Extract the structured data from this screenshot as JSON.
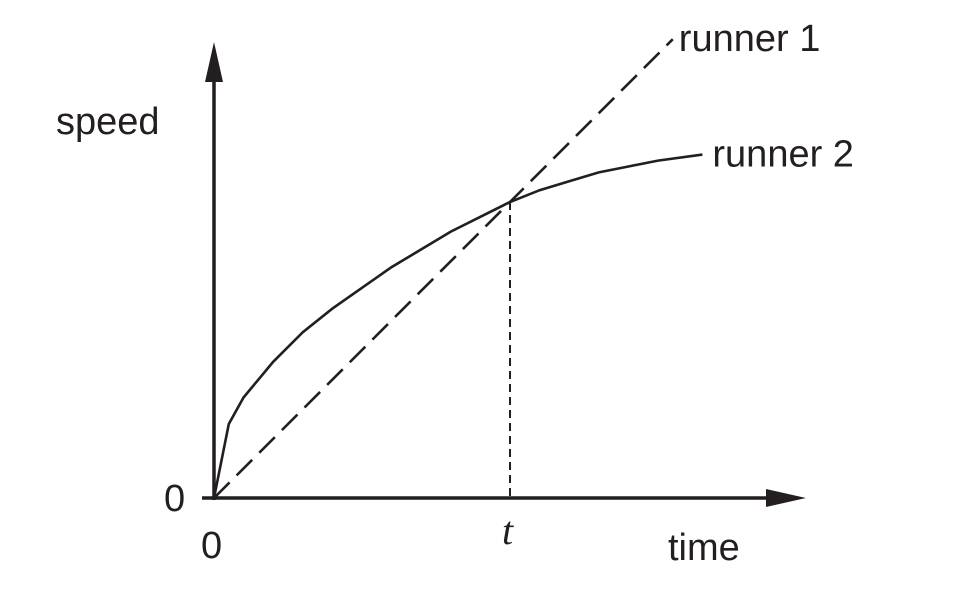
{
  "chart_data": {
    "type": "line",
    "title": "",
    "xlabel": "time",
    "ylabel": "speed",
    "xlim": [
      0,
      2.0
    ],
    "ylim": [
      0,
      2.3
    ],
    "x_origin_label": "0",
    "y_origin_label": "0",
    "marker_label": "t",
    "marker_x": 1.0,
    "series": [
      {
        "name": "runner 1",
        "style": "dashed",
        "x": [
          0,
          1.55
        ],
        "y": [
          0,
          1.55
        ]
      },
      {
        "name": "runner 2",
        "style": "solid",
        "x": [
          0,
          0.05,
          0.1,
          0.2,
          0.3,
          0.4,
          0.5,
          0.6,
          0.7,
          0.8,
          0.9,
          1.0,
          1.1,
          1.2,
          1.3,
          1.4,
          1.5,
          1.65
        ],
        "y": [
          0,
          0.25,
          0.34,
          0.46,
          0.56,
          0.64,
          0.71,
          0.78,
          0.84,
          0.9,
          0.95,
          1.0,
          1.04,
          1.07,
          1.1,
          1.12,
          1.14,
          1.16
        ]
      }
    ],
    "grid": false,
    "legend": "inline-labels-at-line-ends",
    "colors": {
      "ink": "#231f20",
      "background": "#ffffff"
    }
  }
}
